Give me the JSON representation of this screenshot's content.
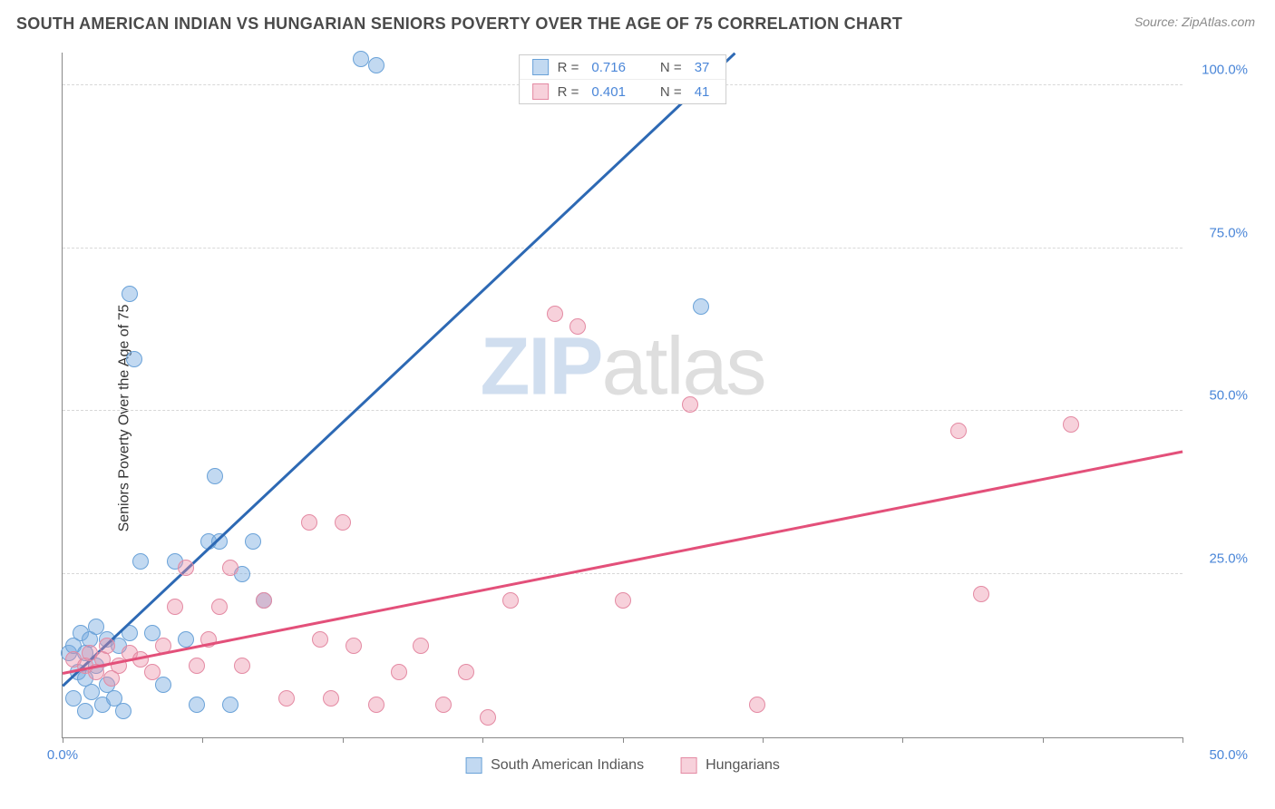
{
  "header": {
    "title": "SOUTH AMERICAN INDIAN VS HUNGARIAN SENIORS POVERTY OVER THE AGE OF 75 CORRELATION CHART",
    "source": "Source: ZipAtlas.com"
  },
  "watermark": {
    "part1": "ZIP",
    "part2": "atlas"
  },
  "chart": {
    "type": "scatter",
    "yaxis_label": "Seniors Poverty Over the Age of 75",
    "background_color": "#ffffff",
    "grid_color": "#d8d8d8",
    "axis_color": "#888888",
    "tick_label_color": "#4a86d8",
    "xlim": [
      0,
      50
    ],
    "ylim": [
      0,
      105
    ],
    "y_ticks": [
      25,
      50,
      75,
      100
    ],
    "y_tick_labels": [
      "25.0%",
      "50.0%",
      "75.0%",
      "100.0%"
    ],
    "x_ticks": [
      0,
      6.25,
      12.5,
      18.75,
      25,
      31.25,
      37.5,
      43.75,
      50
    ],
    "x_tick_labels_shown": {
      "0": "0.0%",
      "50": "50.0%"
    },
    "series": [
      {
        "name": "South American Indians",
        "color_fill": "rgba(120,170,225,0.45)",
        "color_stroke": "#6aa2d8",
        "trend_color": "#2d69b4",
        "marker_radius": 9,
        "r": "0.716",
        "n": "37",
        "trend": {
          "x1": 0,
          "y1": 8,
          "x2": 30,
          "y2": 105
        },
        "points": [
          [
            0.3,
            13
          ],
          [
            0.5,
            14
          ],
          [
            0.7,
            10
          ],
          [
            0.8,
            16
          ],
          [
            1.0,
            9
          ],
          [
            1.0,
            13
          ],
          [
            1.2,
            15
          ],
          [
            1.3,
            7
          ],
          [
            1.5,
            11
          ],
          [
            1.5,
            17
          ],
          [
            1.8,
            5
          ],
          [
            2.0,
            15
          ],
          [
            2.0,
            8
          ],
          [
            2.3,
            6
          ],
          [
            2.5,
            14
          ],
          [
            2.7,
            4
          ],
          [
            3.0,
            16
          ],
          [
            3.0,
            68
          ],
          [
            3.2,
            58
          ],
          [
            3.5,
            27
          ],
          [
            4.0,
            16
          ],
          [
            4.5,
            8
          ],
          [
            5.0,
            27
          ],
          [
            5.5,
            15
          ],
          [
            6.0,
            5
          ],
          [
            6.5,
            30
          ],
          [
            6.8,
            40
          ],
          [
            7.0,
            30
          ],
          [
            7.5,
            5
          ],
          [
            8.0,
            25
          ],
          [
            8.5,
            30
          ],
          [
            9.0,
            21
          ],
          [
            13.3,
            104
          ],
          [
            14.0,
            103
          ],
          [
            28.5,
            66
          ],
          [
            1.0,
            4
          ],
          [
            0.5,
            6
          ]
        ]
      },
      {
        "name": "Hungarians",
        "color_fill": "rgba(235,140,165,0.40)",
        "color_stroke": "#e48aa3",
        "trend_color": "#e3507a",
        "marker_radius": 9,
        "r": "0.401",
        "n": "41",
        "trend": {
          "x1": 0,
          "y1": 10,
          "x2": 50,
          "y2": 44
        },
        "points": [
          [
            0.5,
            12
          ],
          [
            1.0,
            11
          ],
          [
            1.2,
            13
          ],
          [
            1.5,
            10
          ],
          [
            1.8,
            12
          ],
          [
            2.0,
            14
          ],
          [
            2.5,
            11
          ],
          [
            3.0,
            13
          ],
          [
            3.5,
            12
          ],
          [
            4.0,
            10
          ],
          [
            4.5,
            14
          ],
          [
            5.0,
            20
          ],
          [
            5.5,
            26
          ],
          [
            6.0,
            11
          ],
          [
            6.5,
            15
          ],
          [
            7.0,
            20
          ],
          [
            7.5,
            26
          ],
          [
            8.0,
            11
          ],
          [
            9.0,
            21
          ],
          [
            10.0,
            6
          ],
          [
            11.0,
            33
          ],
          [
            11.5,
            15
          ],
          [
            12.0,
            6
          ],
          [
            12.5,
            33
          ],
          [
            13.0,
            14
          ],
          [
            14.0,
            5
          ],
          [
            15.0,
            10
          ],
          [
            16.0,
            14
          ],
          [
            17.0,
            5
          ],
          [
            18.0,
            10
          ],
          [
            19.0,
            3
          ],
          [
            20.0,
            21
          ],
          [
            22.0,
            65
          ],
          [
            23.0,
            63
          ],
          [
            25.0,
            21
          ],
          [
            28.0,
            51
          ],
          [
            31.0,
            5
          ],
          [
            40.0,
            47
          ],
          [
            41.0,
            22
          ],
          [
            45.0,
            48
          ],
          [
            2.2,
            9
          ]
        ]
      }
    ],
    "legend_top": {
      "r_label": "R  =",
      "n_label": "N  ="
    },
    "legend_bottom": [
      {
        "label": "South American Indians",
        "fill": "rgba(120,170,225,0.45)",
        "stroke": "#6aa2d8"
      },
      {
        "label": "Hungarians",
        "fill": "rgba(235,140,165,0.40)",
        "stroke": "#e48aa3"
      }
    ]
  }
}
